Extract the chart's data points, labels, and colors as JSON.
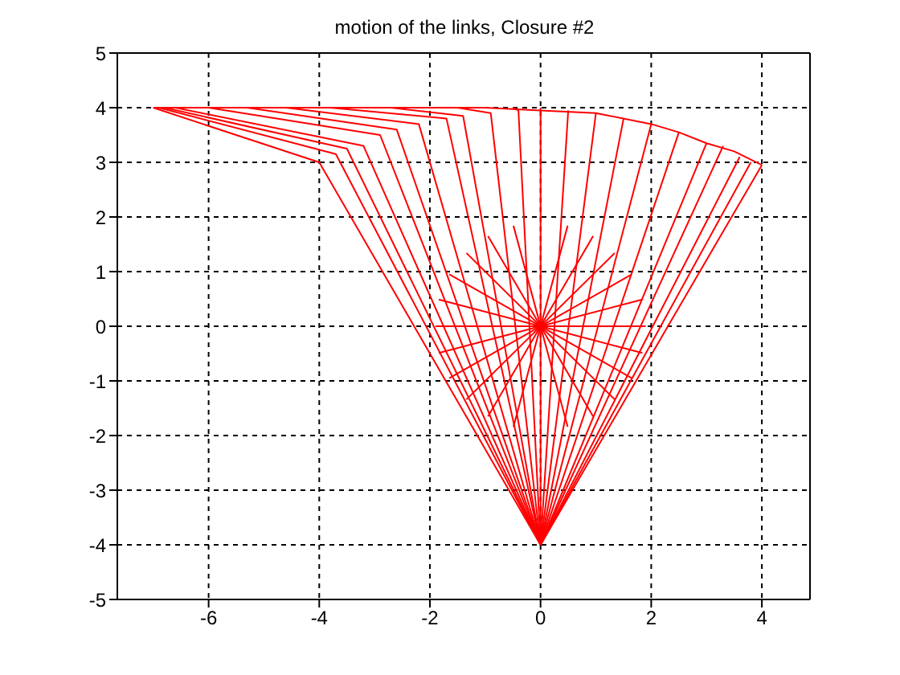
{
  "chart_data": {
    "type": "line",
    "title": "motion of the links, Closure #2",
    "xlim": [
      -7.65,
      4.87
    ],
    "ylim": [
      -5,
      5
    ],
    "xticks": [
      -6,
      -4,
      -2,
      0,
      2,
      4
    ],
    "yticks": [
      -5,
      -4,
      -3,
      -2,
      -1,
      0,
      1,
      2,
      3,
      4,
      5
    ],
    "grid": true,
    "marker": "none",
    "line_style": "solid",
    "series": [
      {
        "color": "#ff0000",
        "x": [
          0,
          -4,
          -7
        ],
        "values": [
          -4,
          3,
          4
        ]
      },
      {
        "color": "#ff0000",
        "x": [
          0,
          -3.7,
          -6.9
        ],
        "values": [
          -4,
          3.15,
          4
        ]
      },
      {
        "color": "#ff0000",
        "x": [
          0,
          -3.5,
          -6.8
        ],
        "values": [
          -4,
          3.25,
          4
        ]
      },
      {
        "color": "#ff0000",
        "x": [
          0,
          -3.2,
          -6.6
        ],
        "values": [
          -4,
          3.3,
          4
        ]
      },
      {
        "color": "#ff0000",
        "x": [
          0,
          -2.9,
          -6
        ],
        "values": [
          -4,
          3.5,
          4
        ]
      },
      {
        "color": "#ff0000",
        "x": [
          0,
          -2.6,
          -5.3
        ],
        "values": [
          -4,
          3.6,
          4
        ]
      },
      {
        "color": "#ff0000",
        "x": [
          0,
          -2.2,
          -4.6
        ],
        "values": [
          -4,
          3.7,
          4
        ]
      },
      {
        "color": "#ff0000",
        "x": [
          0,
          -1.7,
          -3.8
        ],
        "values": [
          -4,
          3.8,
          4
        ]
      },
      {
        "color": "#ff0000",
        "x": [
          0,
          -1.4,
          -2.7
        ],
        "values": [
          -4,
          3.85,
          4
        ]
      },
      {
        "color": "#ff0000",
        "x": [
          0,
          -0.9,
          -1.5
        ],
        "values": [
          -4,
          3.9,
          4
        ]
      },
      {
        "color": "#ff0000",
        "x": [
          0,
          -0.4,
          -0.5
        ],
        "values": [
          -4,
          3.95,
          4
        ]
      },
      {
        "color": "#ff0000",
        "x": [
          0,
          0
        ],
        "values": [
          -4,
          4
        ]
      },
      {
        "color": "#ff0000",
        "x": [
          0,
          0.5
        ],
        "values": [
          -4,
          3.95
        ]
      },
      {
        "color": "#ff0000",
        "x": [
          0,
          1
        ],
        "values": [
          -4,
          3.9
        ]
      },
      {
        "color": "#ff0000",
        "x": [
          0,
          1.5
        ],
        "values": [
          -4,
          3.8
        ]
      },
      {
        "color": "#ff0000",
        "x": [
          0,
          2
        ],
        "values": [
          -4,
          3.7
        ]
      },
      {
        "color": "#ff0000",
        "x": [
          0,
          2.5
        ],
        "values": [
          -4,
          3.55
        ]
      },
      {
        "color": "#ff0000",
        "x": [
          0,
          3
        ],
        "values": [
          -4,
          3.35
        ]
      },
      {
        "color": "#ff0000",
        "x": [
          0,
          3.3
        ],
        "values": [
          -4,
          3.3
        ]
      },
      {
        "color": "#ff0000",
        "x": [
          0,
          3.6
        ],
        "values": [
          -4,
          3.1
        ]
      },
      {
        "color": "#ff0000",
        "x": [
          0,
          3.8
        ],
        "values": [
          -4,
          3
        ]
      },
      {
        "color": "#ff0000",
        "x": [
          0,
          4
        ],
        "values": [
          -4,
          2.95
        ]
      },
      {
        "color": "#ff0000",
        "x": [
          -7,
          -5,
          -3,
          -1,
          0,
          1,
          2,
          2.5,
          3,
          3.5,
          4
        ],
        "values": [
          4,
          4,
          4,
          4,
          3.95,
          3.9,
          3.7,
          3.55,
          3.35,
          3.2,
          2.95
        ]
      },
      {
        "color": "#ff0000",
        "x": [
          -1.9,
          1.9
        ],
        "values": [
          0,
          0
        ]
      },
      {
        "color": "#ff0000",
        "x": [
          -1.84,
          1.84
        ],
        "values": [
          -0.49,
          0.49
        ]
      },
      {
        "color": "#ff0000",
        "x": [
          -1.65,
          1.65
        ],
        "values": [
          -0.95,
          0.95
        ]
      },
      {
        "color": "#ff0000",
        "x": [
          -1.34,
          1.34
        ],
        "values": [
          -1.34,
          1.34
        ]
      },
      {
        "color": "#ff0000",
        "x": [
          -0.95,
          0.95
        ],
        "values": [
          -1.65,
          1.65
        ]
      },
      {
        "color": "#ff0000",
        "x": [
          -0.49,
          0.49
        ],
        "values": [
          -1.84,
          1.84
        ]
      },
      {
        "color": "#ff0000",
        "x": [
          0.49,
          -0.49
        ],
        "values": [
          -1.84,
          1.84
        ]
      },
      {
        "color": "#ff0000",
        "x": [
          0.95,
          -0.95
        ],
        "values": [
          -1.65,
          1.65
        ]
      },
      {
        "color": "#ff0000",
        "x": [
          1.34,
          -1.34
        ],
        "values": [
          -1.34,
          1.34
        ]
      },
      {
        "color": "#ff0000",
        "x": [
          1.65,
          -1.65
        ],
        "values": [
          -0.95,
          0.95
        ]
      },
      {
        "color": "#ff0000",
        "x": [
          1.84,
          -1.84
        ],
        "values": [
          -0.49,
          0.49
        ]
      }
    ]
  }
}
